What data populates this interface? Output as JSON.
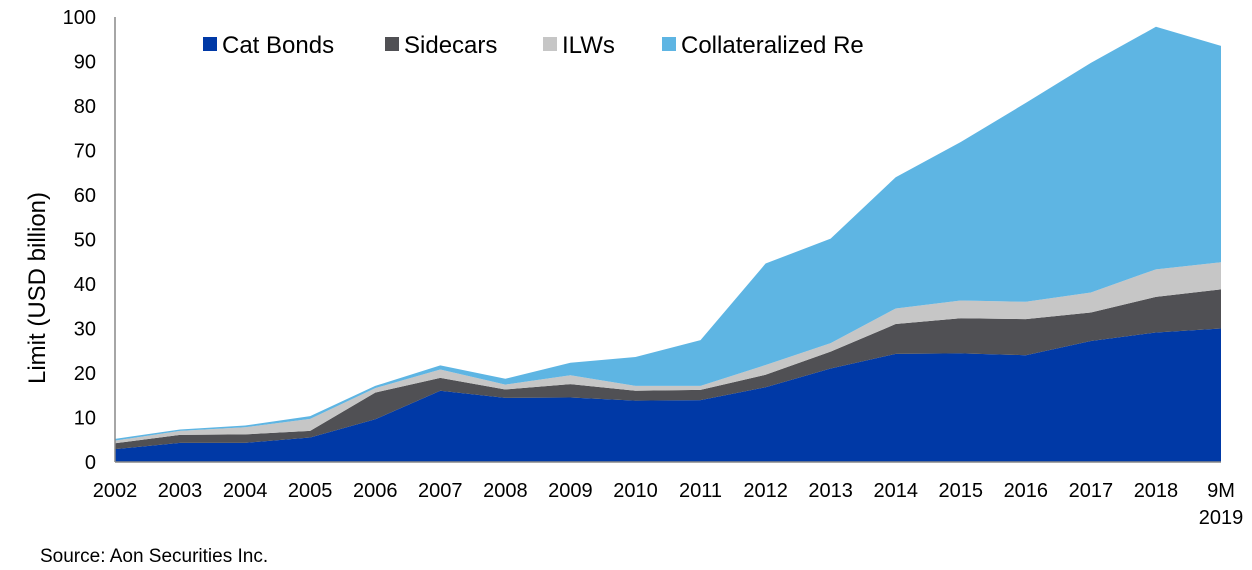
{
  "chart_data": {
    "type": "area",
    "stacked": true,
    "title": "",
    "xlabel": "",
    "ylabel": "Limit (USD billion)",
    "ylim": [
      0,
      100
    ],
    "yticks": [
      0,
      10,
      20,
      30,
      40,
      50,
      60,
      70,
      80,
      90,
      100
    ],
    "grid": false,
    "legend_position": "top",
    "categories": [
      "2002",
      "2003",
      "2004",
      "2005",
      "2006",
      "2007",
      "2008",
      "2009",
      "2010",
      "2011",
      "2012",
      "2013",
      "2014",
      "2015",
      "2016",
      "2017",
      "2018",
      "9M 2019"
    ],
    "series": [
      {
        "name": "Cat Bonds",
        "color": "#0039A6",
        "values": [
          2.9,
          4.3,
          4.3,
          5.5,
          9.6,
          16.0,
          14.4,
          14.5,
          13.8,
          13.9,
          16.8,
          21.0,
          24.3,
          24.4,
          24.0,
          27.2,
          29.1,
          30.0
        ]
      },
      {
        "name": "Sidecars",
        "color": "#505054",
        "values": [
          1.3,
          1.8,
          1.9,
          1.5,
          6.0,
          2.9,
          1.9,
          3.0,
          2.2,
          2.3,
          2.8,
          3.8,
          6.7,
          7.9,
          8.1,
          6.4,
          8.0,
          8.8
        ]
      },
      {
        "name": "ILWs",
        "color": "#C6C6C6",
        "values": [
          0.6,
          0.9,
          1.6,
          2.7,
          1.0,
          1.9,
          1.1,
          2.0,
          1.1,
          0.9,
          2.2,
          1.9,
          3.5,
          4.0,
          3.9,
          4.5,
          6.2,
          6.1
        ]
      },
      {
        "name": "Collateralized Re",
        "color": "#5EB5E3",
        "values": [
          0.4,
          0.3,
          0.4,
          0.6,
          0.5,
          0.9,
          1.3,
          2.8,
          6.5,
          10.3,
          22.8,
          23.5,
          29.5,
          35.6,
          44.7,
          51.6,
          54.5,
          48.6
        ]
      }
    ]
  },
  "source": "Source: Aon Securities Inc."
}
